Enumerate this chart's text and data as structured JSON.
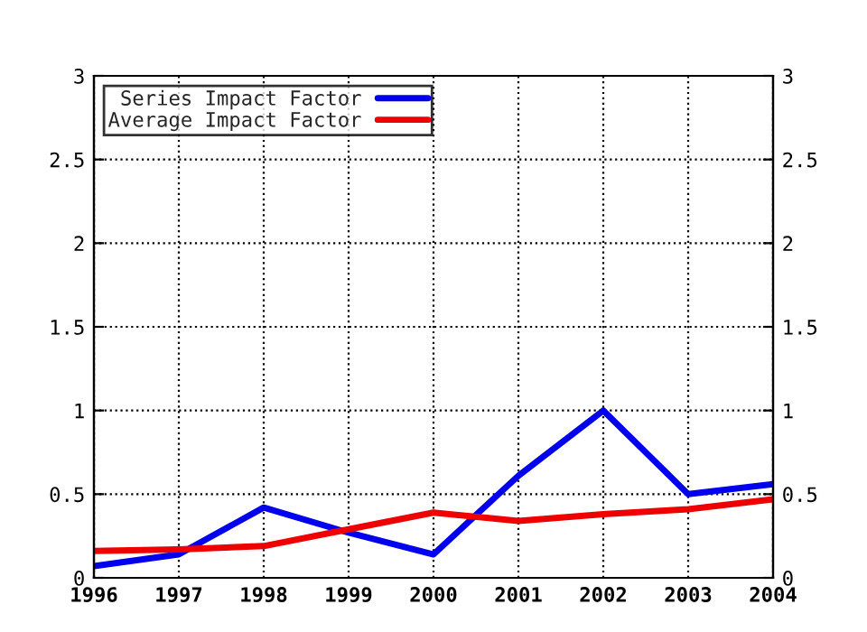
{
  "chart_data": {
    "type": "line",
    "x": [
      1996,
      1997,
      1998,
      1999,
      2000,
      2001,
      2002,
      2003,
      2004
    ],
    "series": [
      {
        "name": "Series Impact Factor",
        "color": "#0000ee",
        "values": [
          0.07,
          0.14,
          0.42,
          0.27,
          0.14,
          0.61,
          1.0,
          0.5,
          0.56
        ]
      },
      {
        "name": "Average Impact Factor",
        "color": "#ee0000",
        "values": [
          0.16,
          0.17,
          0.19,
          0.29,
          0.39,
          0.34,
          0.38,
          0.41,
          0.47
        ]
      }
    ],
    "xlim": [
      1996,
      2004
    ],
    "xticks": [
      1996,
      1997,
      1998,
      1999,
      2000,
      2001,
      2002,
      2003,
      2004
    ],
    "ylim": [
      0,
      3
    ],
    "yticks": [
      0,
      0.5,
      1,
      1.5,
      2,
      2.5,
      3
    ],
    "y2lim": [
      0,
      3
    ],
    "y2ticks": [
      0,
      0.5,
      1,
      1.5,
      2,
      2.5,
      3
    ],
    "grid": true,
    "legend": "top left",
    "line_style": "solid",
    "marker": "none"
  }
}
